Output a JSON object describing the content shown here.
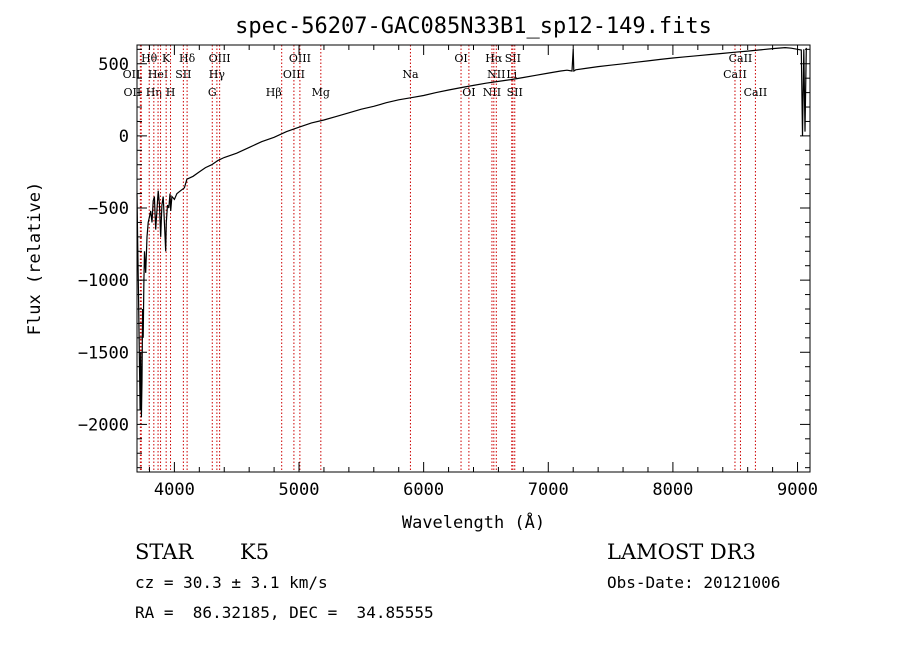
{
  "chart_data": {
    "type": "line",
    "title": "spec-56207-GAC085N33B1_sp12-149.fits",
    "xlabel": "Wavelength (Å)",
    "ylabel": "Flux (relative)",
    "xlim": [
      3700,
      9100
    ],
    "ylim": [
      -2330,
      630
    ],
    "xticks": [
      4000,
      5000,
      6000,
      7000,
      8000,
      9000
    ],
    "yticks": [
      500,
      0,
      -500,
      -1000,
      -1500,
      -2000
    ],
    "series": [
      {
        "name": "spectrum",
        "x": [
          3700,
          3705,
          3712,
          3720,
          3725,
          3730,
          3735,
          3740,
          3745,
          3750,
          3755,
          3760,
          3770,
          3780,
          3790,
          3800,
          3810,
          3820,
          3830,
          3840,
          3850,
          3860,
          3870,
          3880,
          3890,
          3900,
          3910,
          3920,
          3930,
          3935,
          3945,
          3955,
          3965,
          3970,
          3980,
          4000,
          4020,
          4050,
          4080,
          4100,
          4150,
          4200,
          4250,
          4300,
          4350,
          4400,
          4500,
          4600,
          4700,
          4800,
          4900,
          5000,
          5100,
          5200,
          5300,
          5400,
          5500,
          5600,
          5700,
          5800,
          5900,
          6000,
          6100,
          6200,
          6300,
          6400,
          6500,
          6600,
          6700,
          6800,
          6900,
          7000,
          7100,
          7150,
          7190,
          7200,
          7205,
          7210,
          7220,
          7300,
          7400,
          7500,
          7600,
          7700,
          7800,
          7900,
          8000,
          8100,
          8200,
          8300,
          8400,
          8500,
          8600,
          8700,
          8800,
          8900,
          8950,
          9000,
          9030,
          9040,
          9050,
          9060,
          9070
        ],
        "y": [
          -400,
          -700,
          -1100,
          -1600,
          -1900,
          -1500,
          -1950,
          -1700,
          -1200,
          -1400,
          -1000,
          -800,
          -950,
          -700,
          -600,
          -560,
          -520,
          -600,
          -450,
          -420,
          -650,
          -520,
          -380,
          -470,
          -700,
          -480,
          -420,
          -600,
          -800,
          -600,
          -480,
          -500,
          -400,
          -520,
          -420,
          -440,
          -400,
          -380,
          -360,
          -300,
          -280,
          -250,
          -220,
          -200,
          -170,
          -150,
          -120,
          -80,
          -40,
          -10,
          30,
          60,
          90,
          110,
          135,
          160,
          185,
          205,
          230,
          250,
          265,
          280,
          300,
          318,
          335,
          350,
          365,
          378,
          390,
          405,
          420,
          435,
          450,
          455,
          450,
          600,
          450,
          452,
          458,
          468,
          480,
          490,
          500,
          510,
          520,
          530,
          540,
          548,
          556,
          564,
          572,
          580,
          588,
          596,
          605,
          612,
          608,
          600,
          595,
          0,
          600,
          30,
          610
        ]
      }
    ],
    "line_markers": [
      {
        "wl": 3727,
        "label": "OII",
        "row": 1,
        "align": "end"
      },
      {
        "wl": 3734,
        "label": "OII",
        "row": 2,
        "align": "end"
      },
      {
        "wl": 3798,
        "label": "Hθ",
        "row": 0,
        "align": "middle"
      },
      {
        "wl": 3835,
        "label": "Hη",
        "row": 2,
        "align": "middle"
      },
      {
        "wl": 3869,
        "label": "HeI",
        "row": 1,
        "align": "middle"
      },
      {
        "wl": 3889,
        "label": "",
        "row": 0,
        "align": "middle"
      },
      {
        "wl": 3934,
        "label": "K",
        "row": 0,
        "align": "middle"
      },
      {
        "wl": 3969,
        "label": "H",
        "row": 2,
        "align": "middle"
      },
      {
        "wl": 4072,
        "label": "SII",
        "row": 1,
        "align": "middle"
      },
      {
        "wl": 4102,
        "label": "Hδ",
        "row": 0,
        "align": "middle"
      },
      {
        "wl": 4304,
        "label": "G",
        "row": 2,
        "align": "middle"
      },
      {
        "wl": 4341,
        "label": "Hγ",
        "row": 1,
        "align": "middle"
      },
      {
        "wl": 4363,
        "label": "OIII",
        "row": 0,
        "align": "middle"
      },
      {
        "wl": 4861,
        "label": "Hβ",
        "row": 2,
        "align": "end"
      },
      {
        "wl": 4959,
        "label": "OIII",
        "row": 1,
        "align": "middle"
      },
      {
        "wl": 5007,
        "label": "OIII",
        "row": 0,
        "align": "middle"
      },
      {
        "wl": 5175,
        "label": "Mg",
        "row": 2,
        "align": "middle"
      },
      {
        "wl": 5894,
        "label": "Na",
        "row": 1,
        "align": "middle"
      },
      {
        "wl": 6300,
        "label": "OI",
        "row": 0,
        "align": "middle"
      },
      {
        "wl": 6363,
        "label": "OI",
        "row": 2,
        "align": "middle"
      },
      {
        "wl": 6548,
        "label": "NII",
        "row": 2,
        "align": "middle"
      },
      {
        "wl": 6563,
        "label": "Hα",
        "row": 0,
        "align": "middle"
      },
      {
        "wl": 6583,
        "label": "NII",
        "row": 1,
        "align": "middle"
      },
      {
        "wl": 6707,
        "label": "Li",
        "row": 1,
        "align": "middle"
      },
      {
        "wl": 6716,
        "label": "SII",
        "row": 0,
        "align": "middle"
      },
      {
        "wl": 6731,
        "label": "SII",
        "row": 2,
        "align": "middle"
      },
      {
        "wl": 8498,
        "label": "CaII",
        "row": 1,
        "align": "middle"
      },
      {
        "wl": 8542,
        "label": "CaII",
        "row": 0,
        "align": "middle"
      },
      {
        "wl": 8662,
        "label": "CaII",
        "row": 2,
        "align": "middle"
      }
    ],
    "marker_color": "#cc0000",
    "line_color": "#000000"
  },
  "info": {
    "object_class": "STAR",
    "subclass": "K5",
    "redshift_text": "cz = 30.3 ± 3.1 km/s",
    "coords_text": "RA =  86.32185, DEC =  34.85555",
    "survey": "LAMOST DR3",
    "obs_date": "Obs-Date: 20121006"
  }
}
